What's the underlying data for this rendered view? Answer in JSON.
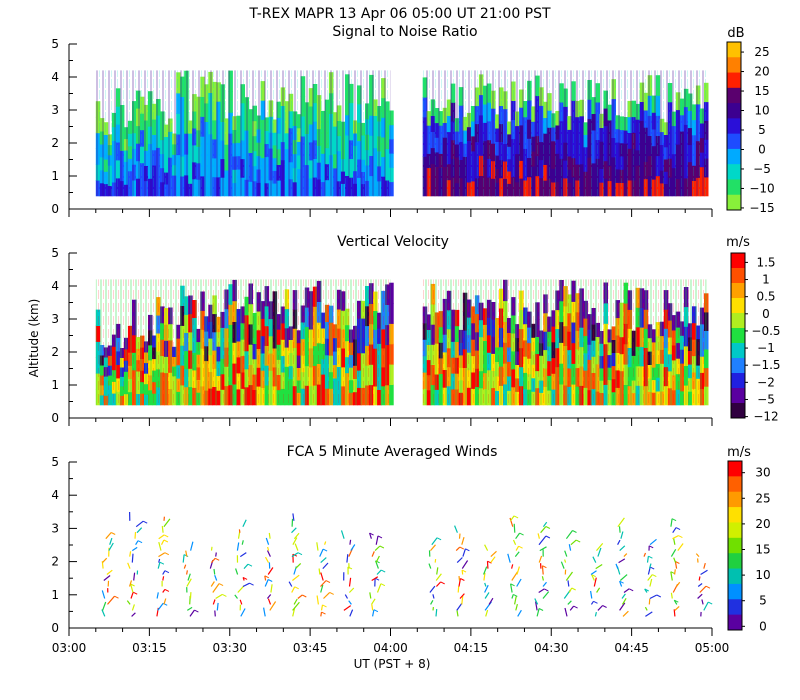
{
  "header": {
    "title": "T-REX  MAPR 13 Apr 06  05:00 UT  21:00  PST"
  },
  "shared": {
    "ylabel": "Altitude (km)",
    "xlabel": "UT  (PST + 8)",
    "x_ticks": [
      "03:00",
      "03:15",
      "03:30",
      "03:45",
      "04:00",
      "04:15",
      "04:30",
      "04:45",
      "05:00"
    ],
    "y_ticks": [
      "0",
      "1",
      "2",
      "3",
      "4",
      "5"
    ],
    "xlim_min": [
      0,
      120
    ],
    "ylim_km": [
      0,
      5
    ],
    "data_gap_min": [
      60,
      66
    ]
  },
  "chart_data": [
    {
      "type": "heatmap",
      "title": "Signal to Noise Ratio",
      "unit": "dB",
      "colorbar_ticks": [
        "25",
        "20",
        "15",
        "10",
        "5",
        "0",
        "−5",
        "−10",
        "−15"
      ],
      "colorbar_colors": [
        "#ffc000",
        "#ff8000",
        "#ff2000",
        "#5a006e",
        "#3c0090",
        "#2a0fd8",
        "#1e4cff",
        "#00aaff",
        "#00d8c8",
        "#22e066",
        "#88f03a"
      ],
      "data_coverage_km": [
        0.4,
        4.2
      ]
    },
    {
      "type": "heatmap",
      "title": "Vertical Velocity",
      "unit": "m/s",
      "colorbar_ticks": [
        "1.5",
        "1",
        "0.5",
        "0",
        "−0.5",
        "−1",
        "−1.5",
        "−2",
        "−5",
        "−12"
      ],
      "colorbar_colors": [
        "#ff0000",
        "#ff5000",
        "#ffa000",
        "#ffe000",
        "#b0ee20",
        "#20e040",
        "#00c8c8",
        "#2080ff",
        "#2020e0",
        "#5a00a0",
        "#300040"
      ],
      "data_coverage_km": [
        0.4,
        4.2
      ]
    },
    {
      "type": "scatter",
      "title": "FCA 5 Minute Averaged Winds",
      "unit": "m/s",
      "colorbar_ticks": [
        "30",
        "25",
        "20",
        "15",
        "10",
        "5",
        "0"
      ],
      "colorbar_colors": [
        "#ff0000",
        "#ff6000",
        "#ff9a00",
        "#ffe000",
        "#d0f000",
        "#70e000",
        "#20d040",
        "#00c0b0",
        "#0090ff",
        "#2030e0",
        "#5a00a0"
      ],
      "data_coverage_km": [
        0.3,
        3.5
      ]
    }
  ]
}
